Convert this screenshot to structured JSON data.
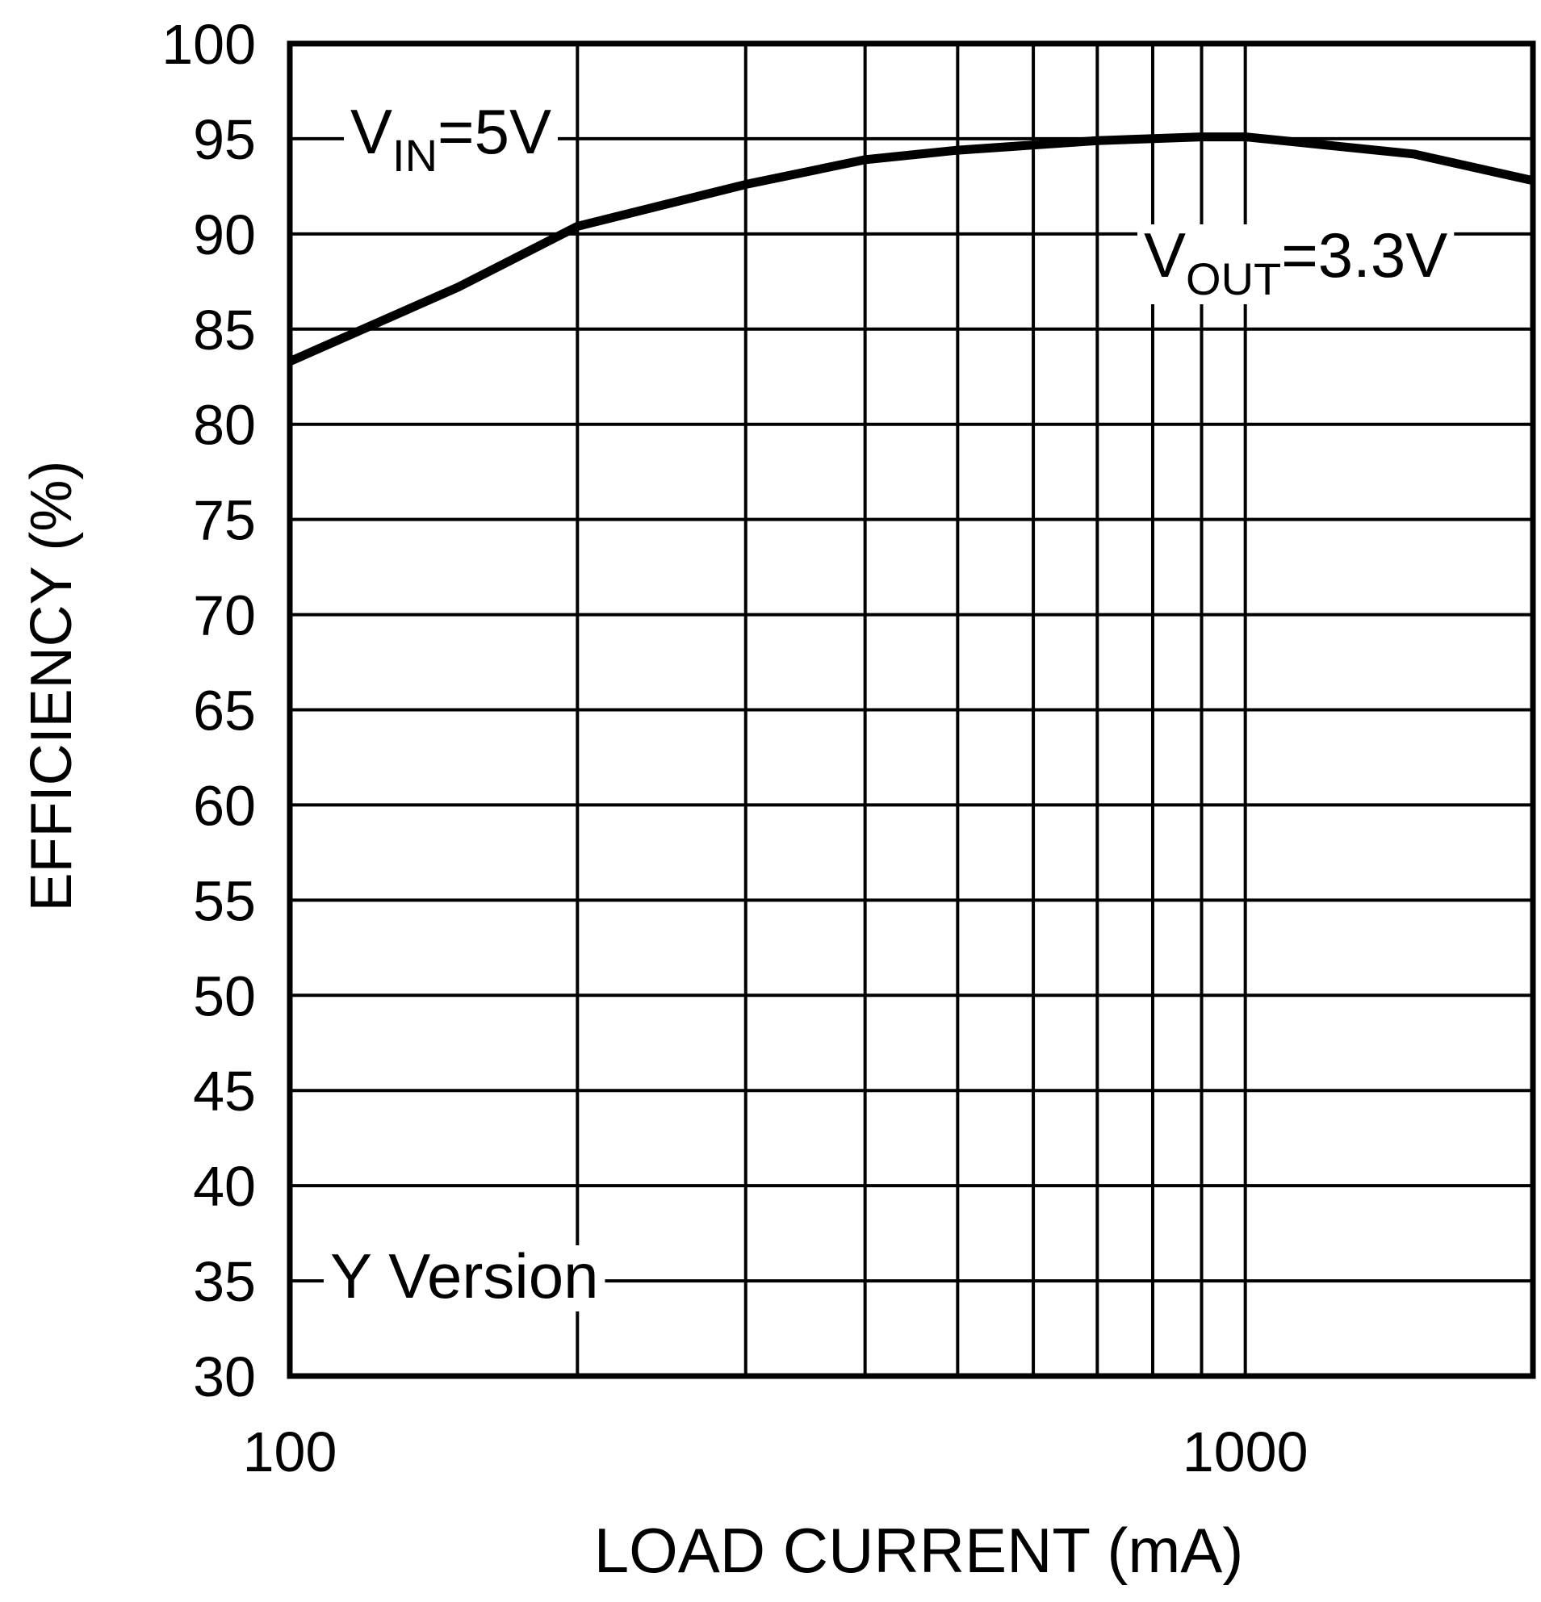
{
  "chart_data": {
    "type": "line",
    "xlabel": "LOAD CURRENT (mA)",
    "ylabel": "EFFICIENCY (%)",
    "xscale": "log",
    "xlim": [
      100,
      2000
    ],
    "xticks": [
      100,
      1000
    ],
    "xminor_ticks": [
      200,
      300,
      400,
      500,
      600,
      700,
      800,
      900
    ],
    "ylim": [
      30,
      100
    ],
    "yticks": [
      30,
      35,
      40,
      45,
      50,
      55,
      60,
      65,
      70,
      75,
      80,
      85,
      90,
      95,
      100
    ],
    "grid": true,
    "series": [
      {
        "color": "#000000",
        "x": [
          100,
          150,
          200,
          300,
          400,
          500,
          700,
          900,
          1000,
          1500,
          2000
        ],
        "values": [
          83.3,
          87.2,
          90.4,
          92.6,
          93.9,
          94.4,
          94.9,
          95.1,
          95.1,
          94.2,
          92.8
        ]
      }
    ],
    "annotations": [
      {
        "text": "V",
        "sub": "IN",
        "rest": "=5V"
      },
      {
        "text": "V",
        "sub": "OUT",
        "rest": "=3.3V"
      },
      {
        "text": "Y Version"
      }
    ]
  }
}
